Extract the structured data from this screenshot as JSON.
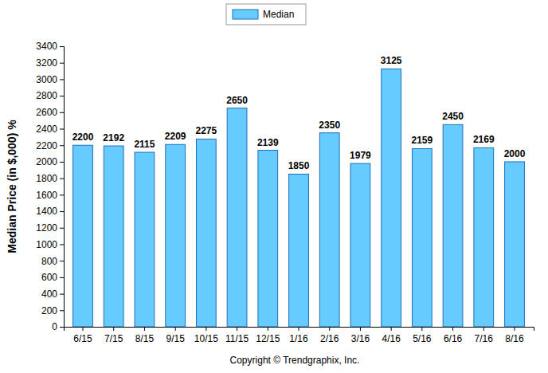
{
  "chart_data": {
    "type": "bar",
    "ylabel": "Median Price (in $,000) %",
    "caption": "Copyright © Trendgraphix, Inc.",
    "categories": [
      "6/15",
      "7/15",
      "8/15",
      "9/15",
      "10/15",
      "11/15",
      "12/15",
      "1/16",
      "2/16",
      "3/16",
      "4/16",
      "5/16",
      "6/16",
      "7/16",
      "8/16"
    ],
    "series": [
      {
        "name": "Median",
        "color": "#66ccff",
        "values": [
          2200,
          2192,
          2115,
          2209,
          2275,
          2650,
          2139,
          1850,
          2350,
          1979,
          3125,
          2159,
          2450,
          2169,
          2000
        ]
      }
    ],
    "ylim": [
      0,
      3400
    ],
    "yticks": [
      0,
      200,
      400,
      600,
      800,
      1000,
      1200,
      1400,
      1600,
      1800,
      2000,
      2200,
      2400,
      2600,
      2800,
      3000,
      3200,
      3400
    ],
    "grid": false,
    "legend": "top",
    "data_labels": true
  }
}
